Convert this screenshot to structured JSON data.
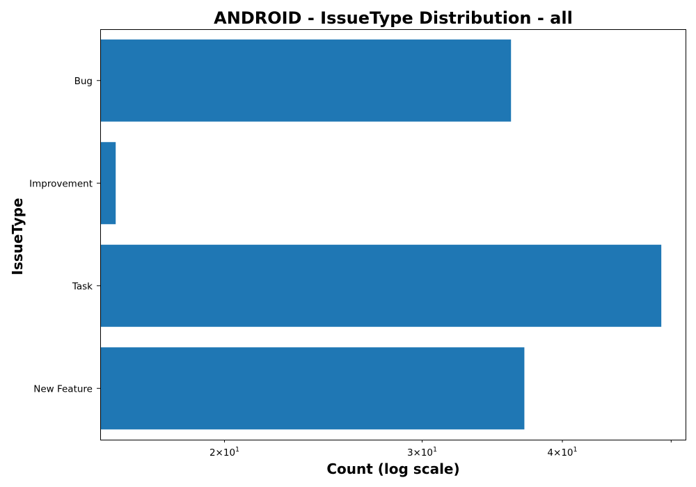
{
  "chart_data": {
    "type": "bar",
    "orientation": "horizontal",
    "title": "ANDROID - IssueType Distribution - all",
    "xlabel": "Count (log scale)",
    "ylabel": "IssueType",
    "x_scale": "log",
    "xlim": [
      15.5,
      51.5
    ],
    "categories": [
      "Bug",
      "Improvement",
      "Task",
      "New Feature"
    ],
    "values": [
      36,
      16,
      49,
      37
    ],
    "bar_color": "#1f77b4",
    "x_ticks": [
      {
        "value": 20,
        "base": "2",
        "exp": "1"
      },
      {
        "value": 30,
        "base": "3",
        "exp": "1"
      },
      {
        "value": 40,
        "base": "4",
        "exp": "1"
      },
      {
        "value": 50,
        "base": "",
        "exp": ""
      }
    ],
    "grid": false,
    "legend": "none"
  }
}
